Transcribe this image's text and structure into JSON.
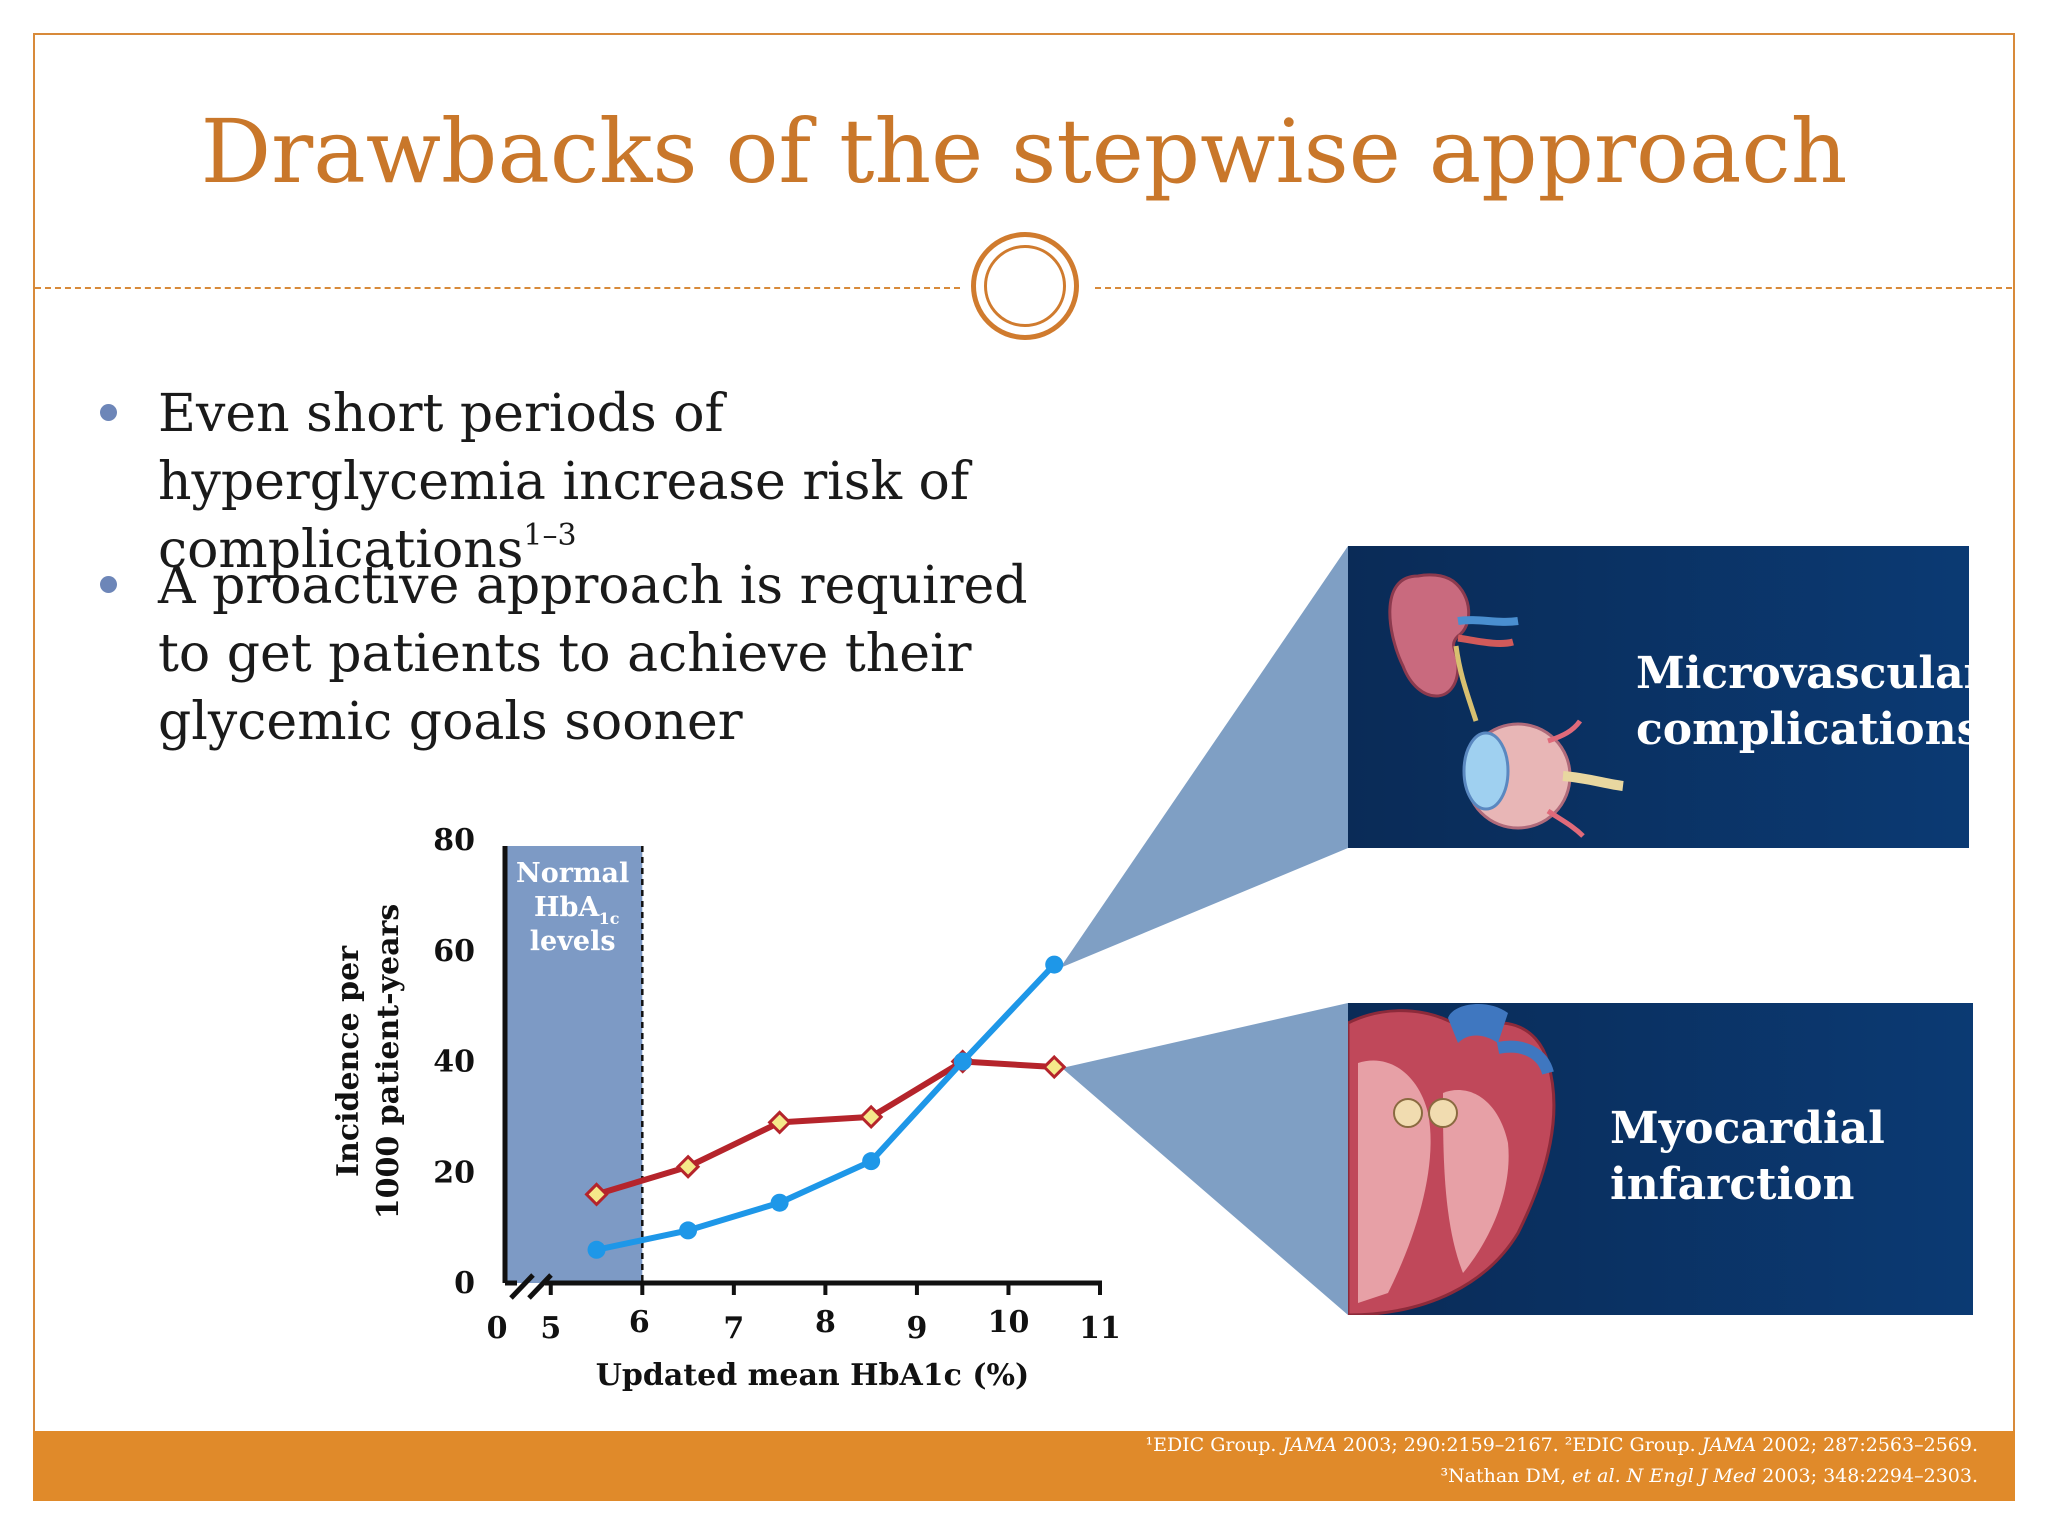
{
  "slide": {
    "title": "Drawbacks of the stepwise approach",
    "bullets": [
      {
        "text": "Even short periods of hyperglycemia increase risk of complications",
        "sup": "1–3"
      },
      {
        "text": "A proactive approach is required to get patients to achieve their glycemic goals sooner",
        "sup": ""
      }
    ],
    "panels": {
      "micro_label_line1": "Microvascular",
      "micro_label_line2": "complications",
      "mi_label_line1": "Myocardial",
      "mi_label_line2": "infarction"
    },
    "references": {
      "line1_a": "¹EDIC Group. ",
      "line1_b": "JAMA",
      "line1_c": " 2003; 290:2159–2167. ²EDIC Group. ",
      "line1_d": "JAMA",
      "line1_e": " 2002; 287:2563–2569.",
      "line2_a": "³Nathan DM, ",
      "line2_b": "et al. N Engl J Med",
      "line2_c": " 2003; 348:2294–2303."
    }
  },
  "chart_data": {
    "type": "line",
    "xlabel": "Updated mean HbA1c (%)",
    "ylabel_line1": "Incidence per",
    "ylabel_line2": "1000 patient-years",
    "ylim": [
      0,
      80
    ],
    "xlim": [
      4.5,
      11
    ],
    "yticks": [
      0,
      20,
      40,
      60,
      80
    ],
    "ytick_labels": [
      "0",
      "20",
      "40",
      "60",
      "80"
    ],
    "xticks": [
      5,
      6,
      7,
      8,
      9,
      10,
      11
    ],
    "xtick_labels": [
      "5",
      "6",
      "7",
      "8",
      "9",
      "10",
      "11"
    ],
    "x_origin_label": "0",
    "shaded_region": {
      "x_end": 6,
      "label_line1": "Normal",
      "label_line2": "HbA",
      "label_sub": "1c",
      "label_line3": "levels",
      "color": "#6f8fbf"
    },
    "series": [
      {
        "key": "mi",
        "color": "#b5242b",
        "marker": "diamond",
        "marker_fill": "#f5e98a",
        "x": [
          5.5,
          6.5,
          7.5,
          8.5,
          9.5,
          10.5
        ],
        "y": [
          16,
          21,
          29,
          30,
          40,
          39
        ]
      },
      {
        "key": "micro",
        "color": "#1e97e8",
        "marker": "circle",
        "marker_fill": "#1e97e8",
        "x": [
          5.5,
          6.5,
          7.5,
          8.5,
          9.5,
          10.5
        ],
        "y": [
          6,
          9.5,
          14.5,
          22,
          40,
          57.5
        ]
      }
    ],
    "grid": false
  }
}
